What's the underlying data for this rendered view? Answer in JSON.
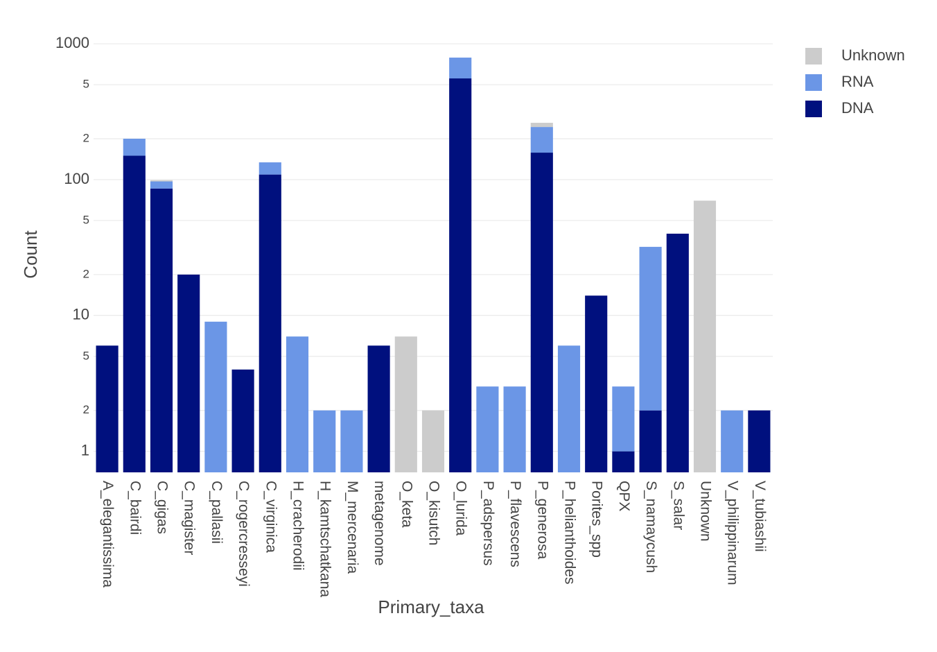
{
  "chart_data": {
    "type": "bar",
    "stacked": true,
    "log_y": true,
    "grid": true,
    "xlabel": "Primary_taxa",
    "ylabel": "Count",
    "categories": [
      "A_elegantissima",
      "C_bairdi",
      "C_gigas",
      "C_magister",
      "C_pallasii",
      "C_rogercresseyi",
      "C_virginica",
      "H_cracherodii",
      "H_kamtschatkana",
      "M_mercenaria",
      "metagenome",
      "O_keta",
      "O_kisutch",
      "O_lurida",
      "P_adspersus",
      "P_flavescens",
      "P_generosa",
      "P_helianthoides",
      "Porites_spp",
      "QPX",
      "S_namaycush",
      "S_salar",
      "Unknown",
      "V_philippinarum",
      "V_tubiashii"
    ],
    "series": [
      {
        "name": "DNA",
        "color": "#00107e",
        "values": [
          6,
          150,
          86,
          20,
          null,
          4,
          109,
          null,
          null,
          null,
          6,
          null,
          null,
          556,
          null,
          null,
          158,
          null,
          14,
          1,
          2,
          40,
          null,
          null,
          2
        ]
      },
      {
        "name": "RNA",
        "color": "#6b96e6",
        "values": [
          null,
          50,
          11,
          null,
          9,
          null,
          25,
          7,
          2,
          2,
          null,
          null,
          null,
          235,
          3,
          3,
          86,
          6,
          null,
          2,
          30,
          null,
          null,
          2,
          null
        ]
      },
      {
        "name": "Unknown",
        "color": "#cccccc",
        "values": [
          null,
          null,
          2,
          null,
          null,
          null,
          null,
          null,
          null,
          null,
          null,
          7,
          2,
          null,
          null,
          null,
          18,
          null,
          null,
          null,
          null,
          null,
          70,
          null,
          null
        ]
      }
    ],
    "ylim": [
      0.7,
      1100
    ],
    "yticks": [
      1,
      2,
      5,
      10,
      {
        "value": 20,
        "label": "2"
      },
      {
        "value": 50,
        "label": "5"
      },
      100,
      {
        "value": 200,
        "label": "2"
      },
      {
        "value": 500,
        "label": "5"
      },
      1000
    ],
    "legend": "top-right"
  }
}
